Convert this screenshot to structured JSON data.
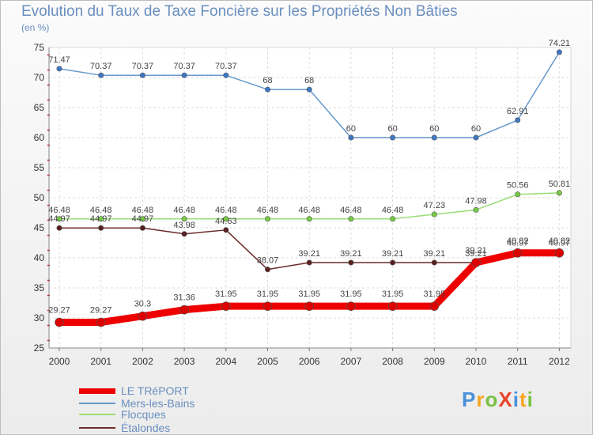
{
  "title": "Evolution du Taux de Taxe Foncière sur les Propriétés Non Bâties",
  "unit_label": "(en %)",
  "logo_text": "ProXiti",
  "chart_data": {
    "type": "line",
    "title": "Evolution du Taux de Taxe Foncière sur les Propriétés Non Bâties",
    "ylabel": "(en %)",
    "xlabel": "",
    "ylim": [
      25,
      75
    ],
    "yticks": [
      25,
      30,
      35,
      40,
      45,
      50,
      55,
      60,
      65,
      70,
      75
    ],
    "categories": [
      "2000",
      "2001",
      "2002",
      "2003",
      "2004",
      "2005",
      "2006",
      "2007",
      "2008",
      "2009",
      "2010",
      "2011",
      "2012"
    ],
    "grid": true,
    "legend": "bottom-left",
    "series": [
      {
        "name": "Mers-les-Bains",
        "color": "#6699cc",
        "marker": "#3d78c4",
        "width": 1.5,
        "values": [
          71.47,
          70.37,
          70.37,
          70.37,
          70.37,
          68,
          68,
          60,
          60,
          60,
          60,
          62.91,
          74.21
        ],
        "labels": [
          "71.47",
          "70.37",
          "70.37",
          "70.37",
          "70.37",
          "68",
          "68",
          "60",
          "60",
          "60",
          "60",
          "62.91",
          "74.21"
        ]
      },
      {
        "name": "Flocques",
        "color": "#99dd77",
        "marker": "#77cc44",
        "width": 1.5,
        "values": [
          46.48,
          46.48,
          46.48,
          46.48,
          46.48,
          46.48,
          46.48,
          46.48,
          46.48,
          47.23,
          47.98,
          50.56,
          50.81
        ],
        "labels": [
          "46.48",
          "46.48",
          "46.48",
          "46.48",
          "46.48",
          "46.48",
          "46.48",
          "46.48",
          "46.48",
          "47.23",
          "47.98",
          "50.56",
          "50.81"
        ]
      },
      {
        "name": "Étalondes",
        "color": "#6b2b2b",
        "marker": "#5a1f1f",
        "width": 1.5,
        "values": [
          44.97,
          44.97,
          44.97,
          43.98,
          44.63,
          38.07,
          39.21,
          39.21,
          39.21,
          39.21,
          39.21,
          40.97,
          40.97
        ],
        "labels": [
          "44.97",
          "44.97",
          "44.97",
          "43.98",
          "44.63",
          "38.07",
          "39.21",
          "39.21",
          "39.21",
          "39.21",
          "39.21",
          "40.97",
          "40.97"
        ]
      },
      {
        "name": "LE TRéPORT",
        "color": "#ee0000",
        "marker": "#dd0000",
        "width": 9,
        "values": [
          29.27,
          29.27,
          30.3,
          31.36,
          31.95,
          31.95,
          31.95,
          31.95,
          31.95,
          31.95,
          39.21,
          40.82,
          40.82
        ],
        "labels": [
          "29.27",
          "29.27",
          "30.3",
          "31.36",
          "31.95",
          "31.95",
          "31.95",
          "31.95",
          "31.95",
          "31.95",
          "39.21",
          "40.82",
          "40.82"
        ]
      }
    ],
    "legend_order": [
      "LE TRéPORT",
      "Mers-les-Bains",
      "Flocques",
      "Étalondes"
    ]
  }
}
